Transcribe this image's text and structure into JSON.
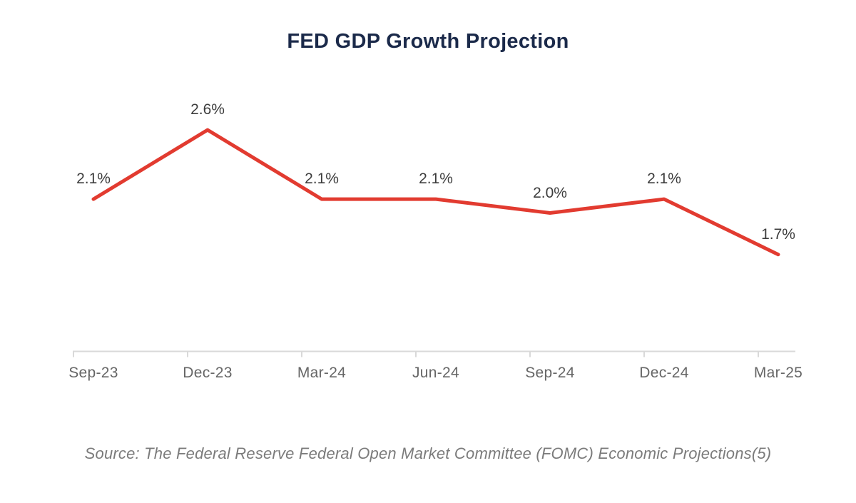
{
  "chart_data": {
    "type": "line",
    "title": "FED GDP Growth Projection",
    "categories": [
      "Sep-23",
      "Dec-23",
      "Mar-24",
      "Jun-24",
      "Sep-24",
      "Dec-24",
      "Mar-25"
    ],
    "values": [
      2.1,
      2.6,
      2.1,
      2.1,
      2.0,
      2.1,
      1.7
    ],
    "point_labels": [
      "2.1%",
      "2.6%",
      "2.1%",
      "2.1%",
      "2.0%",
      "2.1%",
      "1.7%"
    ],
    "xlabel": "",
    "ylabel": "",
    "ylim": [
      1.0,
      3.0
    ],
    "grid": false,
    "legend": "none",
    "source": "Source: The Federal Reserve Federal Open Market Committee (FOMC) Economic Projections(5)",
    "colors": {
      "line": "#e23b30",
      "point_label": "#3d3d3d",
      "axis": "#d9d9d9",
      "tick_label": "#666666",
      "title": "#1b2a4a",
      "source": "#7b7b7b",
      "background": "#ffffff"
    }
  }
}
